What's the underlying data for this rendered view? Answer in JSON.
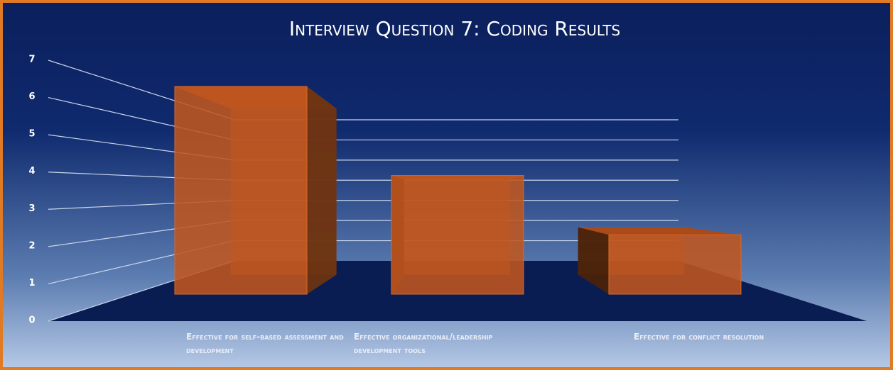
{
  "chart_data": {
    "type": "bar3d",
    "title": "Interview Question 7: Coding Results",
    "categories": [
      "Effective for self-based assessment and development",
      "Effective organizational/leadership development tools",
      "Effective for conflict resolution"
    ],
    "values": [
      7,
      4,
      2
    ],
    "color": "#c0561f",
    "ylim": [
      0,
      7
    ],
    "yticks": [
      0,
      1,
      2,
      3,
      4,
      5,
      6,
      7
    ],
    "grid": true
  }
}
